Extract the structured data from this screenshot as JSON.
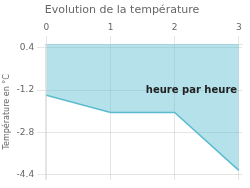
{
  "chart_data": {
    "type": "area",
    "title": "Evolution de la température",
    "ylabel": "Température en °C",
    "x": [
      0,
      1,
      2,
      3
    ],
    "values": [
      -1.4,
      -2.05,
      -2.05,
      -4.25
    ],
    "color": "#5bbcd0",
    "xlim": [
      -0.02,
      3.05
    ],
    "ylim": [
      -4.6,
      0.55
    ],
    "xticks": [
      0,
      1,
      2,
      3
    ],
    "yticks": [
      0.4,
      -1.2,
      -2.8,
      -4.4
    ],
    "grid": true,
    "annotations": [
      {
        "text": "heure par heure",
        "x": 1.55,
        "y": -1.3
      }
    ]
  }
}
